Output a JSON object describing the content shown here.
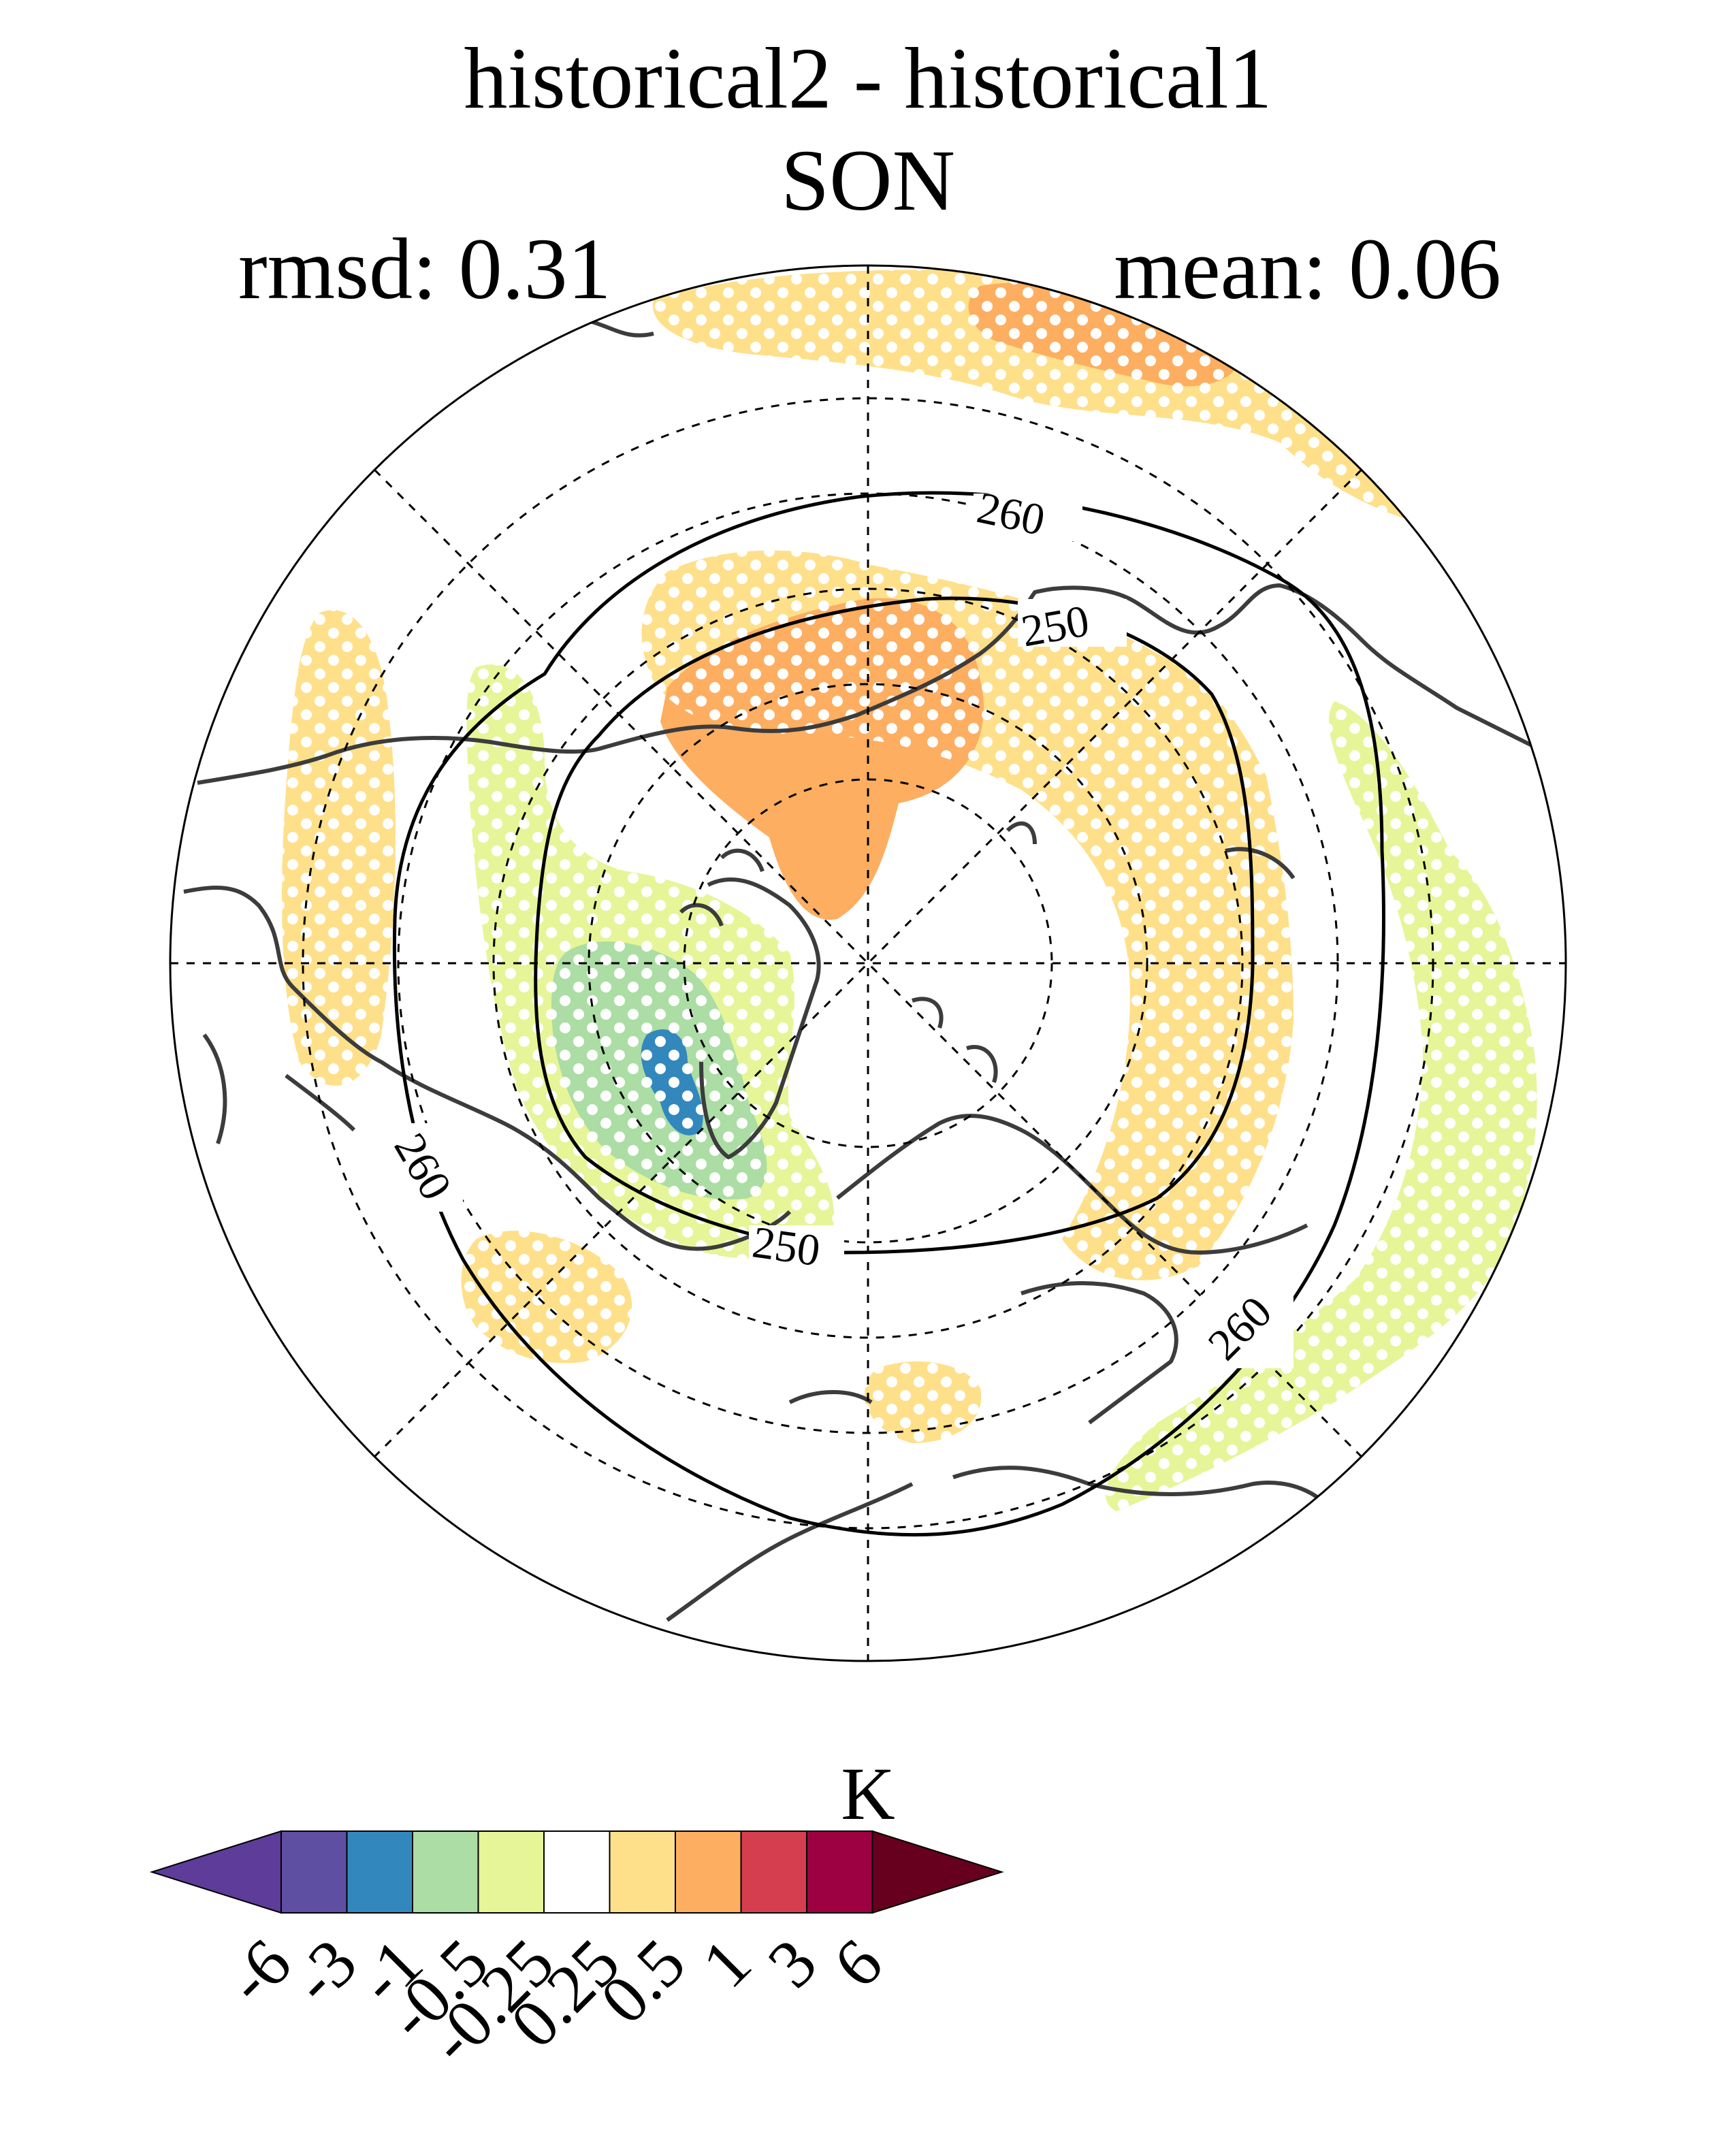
{
  "header": {
    "title": "historical2 - historical1",
    "season": "SON",
    "rmsd": "rmsd: 0.31",
    "mean": "mean: 0.06"
  },
  "map": {
    "projection": "north polar stereographic",
    "gridlines": "dashed",
    "contours": [
      {
        "value": 250,
        "label": "250"
      },
      {
        "value": 260,
        "label": "260"
      }
    ],
    "contour_labels": [
      "260",
      "250",
      "260",
      "250",
      "260"
    ],
    "stippling": "white dots",
    "anomaly_regions": [
      {
        "name": "north-pacific-warm",
        "level": "0.25 to 0.5",
        "color": "#fee08b"
      },
      {
        "name": "north-pacific-warm-core",
        "level": "0.5 to 1",
        "color": "#fdae61"
      },
      {
        "name": "east-siberia-warm",
        "level": "0.5 to 1",
        "color": "#fdae61"
      },
      {
        "name": "siberia-warm",
        "level": "0.25 to 0.5",
        "color": "#fee08b"
      },
      {
        "name": "north-america-cool",
        "level": "-1 to -0.5",
        "color": "#abdda4"
      },
      {
        "name": "hudson-cool",
        "level": "-3 to -1",
        "color": "#3288bd"
      },
      {
        "name": "eurasia-cool",
        "level": "-0.5 to -0.25",
        "color": "#e6f598"
      }
    ]
  },
  "colorbar": {
    "unit": "K",
    "tick_labels": [
      "-6",
      "-3",
      "-1",
      "-0.5",
      "-0.25",
      "0.25",
      "0.5",
      "1",
      "3",
      "6"
    ],
    "colors": [
      "#5e3c99",
      "#5e4fa2",
      "#3288bd",
      "#abdda4",
      "#e6f598",
      "#ffffff",
      "#fee08b",
      "#fdae61",
      "#d53e4f",
      "#9e0142",
      "#67001f"
    ]
  }
}
